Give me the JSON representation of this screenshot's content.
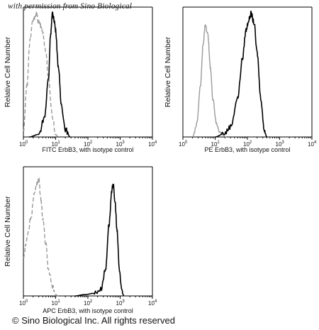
{
  "watermark": "with permission from Sino Biological",
  "copyright": "© Sino Biological Inc. All rights reserved",
  "colors": {
    "sample": "#000000",
    "control": "#9a9a9a"
  },
  "chart_data": [
    {
      "type": "histogram",
      "id": "fitc",
      "xlabel": "FITC  ErbB3,  with isotype control",
      "ylabel": "Relative Cell Number",
      "x_scale": "log",
      "xlim": [
        1,
        10000
      ],
      "x_ticks": [
        "0",
        "1",
        "2",
        "3",
        "4"
      ],
      "series": [
        {
          "role": "sample",
          "style": "solid",
          "peak_x": 8,
          "peak_rel_height": 0.95,
          "points": [
            [
              1.5,
              0.0
            ],
            [
              3,
              0.02
            ],
            [
              4.5,
              0.15
            ],
            [
              6,
              0.45
            ],
            [
              7,
              0.8
            ],
            [
              8,
              0.95
            ],
            [
              9,
              0.9
            ],
            [
              10,
              0.82
            ],
            [
              12,
              0.55
            ],
            [
              15,
              0.25
            ],
            [
              20,
              0.06
            ],
            [
              28,
              0.0
            ]
          ]
        },
        {
          "role": "control",
          "style": "dashed",
          "peak_x": 2.5,
          "peak_rel_height": 0.95,
          "points": [
            [
              1,
              0.05
            ],
            [
              1.3,
              0.4
            ],
            [
              1.6,
              0.75
            ],
            [
              2,
              0.9
            ],
            [
              2.5,
              0.95
            ],
            [
              3,
              0.88
            ],
            [
              3.5,
              0.85
            ],
            [
              4,
              0.8
            ],
            [
              5,
              0.65
            ],
            [
              6,
              0.45
            ],
            [
              8,
              0.15
            ],
            [
              10,
              0.02
            ],
            [
              12,
              0.0
            ]
          ]
        }
      ]
    },
    {
      "type": "histogram",
      "id": "pe",
      "xlabel": "PE  ErbB3,  with isotype control",
      "ylabel": "Relative Cell Number",
      "x_scale": "log",
      "xlim": [
        1,
        10000
      ],
      "x_ticks": [
        "0",
        "1",
        "2",
        "3",
        "4"
      ],
      "series": [
        {
          "role": "sample",
          "style": "solid",
          "peak_x": 130,
          "peak_rel_height": 0.95,
          "points": [
            [
              10,
              0.0
            ],
            [
              20,
              0.03
            ],
            [
              30,
              0.08
            ],
            [
              50,
              0.3
            ],
            [
              70,
              0.6
            ],
            [
              90,
              0.82
            ],
            [
              110,
              0.9
            ],
            [
              130,
              0.95
            ],
            [
              160,
              0.88
            ],
            [
              200,
              0.65
            ],
            [
              260,
              0.3
            ],
            [
              330,
              0.06
            ],
            [
              400,
              0.0
            ]
          ]
        },
        {
          "role": "control",
          "style": "solid",
          "peak_x": 5,
          "peak_rel_height": 0.87,
          "points": [
            [
              2,
              0.0
            ],
            [
              2.7,
              0.1
            ],
            [
              3.5,
              0.4
            ],
            [
              4.2,
              0.7
            ],
            [
              5,
              0.87
            ],
            [
              6,
              0.78
            ],
            [
              7,
              0.55
            ],
            [
              8.5,
              0.3
            ],
            [
              11,
              0.1
            ],
            [
              15,
              0.03
            ],
            [
              22,
              0.0
            ]
          ]
        }
      ]
    },
    {
      "type": "histogram",
      "id": "apc",
      "xlabel": "APC  ErbB3, with isotype control",
      "ylabel": "Relative Cell Number",
      "x_scale": "log",
      "xlim": [
        1,
        10000
      ],
      "x_ticks": [
        "0",
        "1",
        "2",
        "3",
        "4"
      ],
      "series": [
        {
          "role": "sample",
          "style": "solid",
          "peak_x": 600,
          "peak_rel_height": 0.87,
          "points": [
            [
              40,
              0.0
            ],
            [
              80,
              0.01
            ],
            [
              150,
              0.02
            ],
            [
              250,
              0.05
            ],
            [
              350,
              0.2
            ],
            [
              450,
              0.55
            ],
            [
              550,
              0.8
            ],
            [
              600,
              0.87
            ],
            [
              700,
              0.72
            ],
            [
              800,
              0.5
            ],
            [
              950,
              0.2
            ],
            [
              1100,
              0.05
            ],
            [
              1300,
              0.0
            ]
          ]
        },
        {
          "role": "control",
          "style": "dashed",
          "peak_x": 3,
          "peak_rel_height": 0.9,
          "points": [
            [
              1,
              0.3
            ],
            [
              1.3,
              0.45
            ],
            [
              1.7,
              0.6
            ],
            [
              2.2,
              0.8
            ],
            [
              2.7,
              0.88
            ],
            [
              3,
              0.9
            ],
            [
              3.5,
              0.75
            ],
            [
              4,
              0.6
            ],
            [
              5,
              0.4
            ],
            [
              6,
              0.2
            ],
            [
              8,
              0.07
            ],
            [
              10,
              0.01
            ],
            [
              12,
              0.0
            ]
          ]
        }
      ]
    }
  ]
}
